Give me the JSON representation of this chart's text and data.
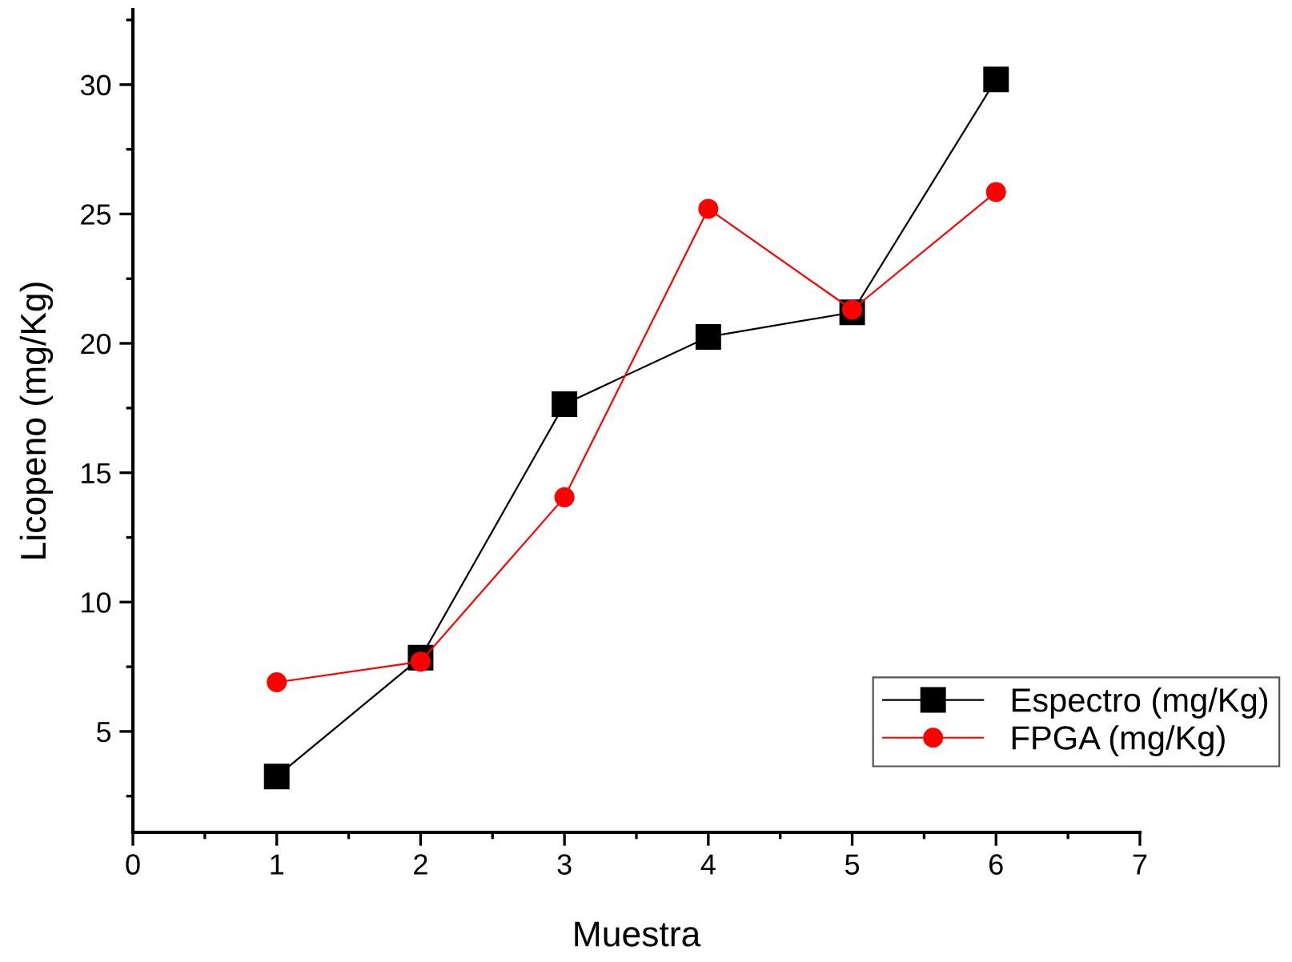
{
  "chart_data": {
    "type": "line",
    "xlabel": "Muestra",
    "ylabel": "Licopeno (mg/Kg)",
    "x": [
      1,
      2,
      3,
      4,
      5,
      6
    ],
    "series": [
      {
        "name": "Espectro (mg/Kg)",
        "color": "#000000",
        "marker": "square",
        "values": [
          3.26,
          7.85,
          17.65,
          20.25,
          21.2,
          30.2
        ]
      },
      {
        "name": "FPGA (mg/Kg)",
        "color": "#ff0000",
        "marker": "circle",
        "values": [
          6.9,
          7.7,
          14.05,
          25.2,
          21.3,
          25.85
        ]
      }
    ],
    "xlim": [
      0,
      7
    ],
    "xticks": [
      0,
      1,
      2,
      3,
      4,
      5,
      6,
      7
    ],
    "ylim": [
      1.1,
      32.9
    ],
    "yticks": [
      5,
      10,
      15,
      20,
      25,
      30
    ],
    "grid": false,
    "legend": "bottom right",
    "line_style": "solid"
  }
}
